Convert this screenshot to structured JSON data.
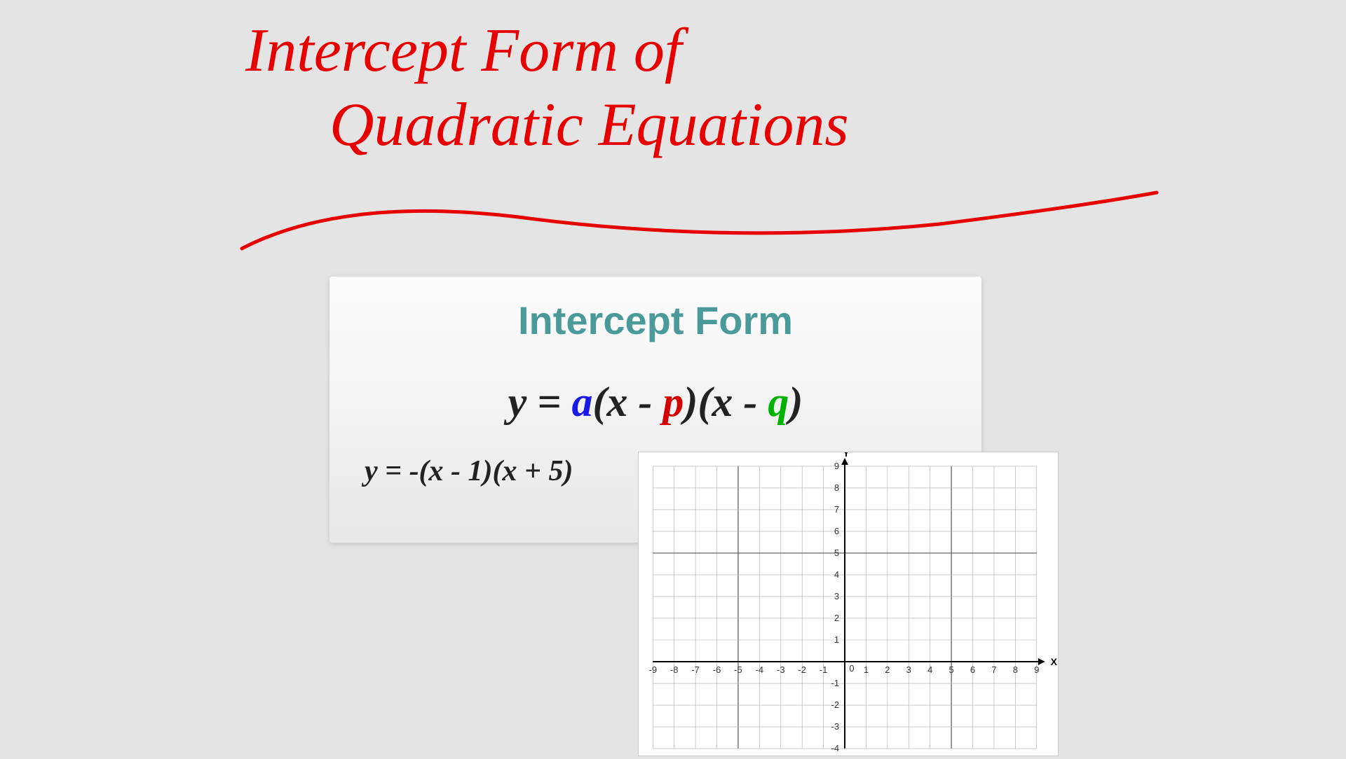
{
  "title": {
    "line1": "Intercept Form of",
    "line2": "Quadratic Equations",
    "color": "#e60000",
    "fontsize": 88
  },
  "card": {
    "heading": "Intercept Form",
    "heading_color": "#4a9a9a",
    "heading_fontsize": 56,
    "formula": {
      "prefix": "y = ",
      "a": "a",
      "mid1": "(x - ",
      "p": "p",
      "mid2": ")(x - ",
      "q": "q",
      "suffix": ")",
      "color_a": "#1a1ae6",
      "color_p": "#d40000",
      "color_q": "#00b300",
      "fontsize": 60
    },
    "example": "y = -(x - 1)(x + 5)",
    "example_fontsize": 42,
    "background": "#f5f5f5"
  },
  "graph": {
    "type": "cartesian-grid",
    "xlim": [
      -9,
      9
    ],
    "ylim": [
      -4,
      9
    ],
    "xtick_step": 1,
    "ytick_step": 1,
    "x_axis_label": "X",
    "y_axis_label": "Y",
    "origin_label": "0",
    "grid_color": "#888888",
    "major_grid_color": "#333333",
    "background_color": "#ffffff",
    "axis_color": "#000000",
    "tick_fontsize": 13,
    "x_ticks": [
      -9,
      -8,
      -7,
      -6,
      -5,
      -4,
      -3,
      -2,
      -1,
      1,
      2,
      3,
      4,
      5,
      6,
      7,
      8,
      9
    ],
    "y_ticks_pos": [
      1,
      2,
      3,
      4,
      5,
      6,
      7,
      8,
      9
    ],
    "y_ticks_neg": [
      -1,
      -2,
      -3,
      -4
    ]
  },
  "underline": {
    "color": "#e60000",
    "stroke_width": 5
  }
}
